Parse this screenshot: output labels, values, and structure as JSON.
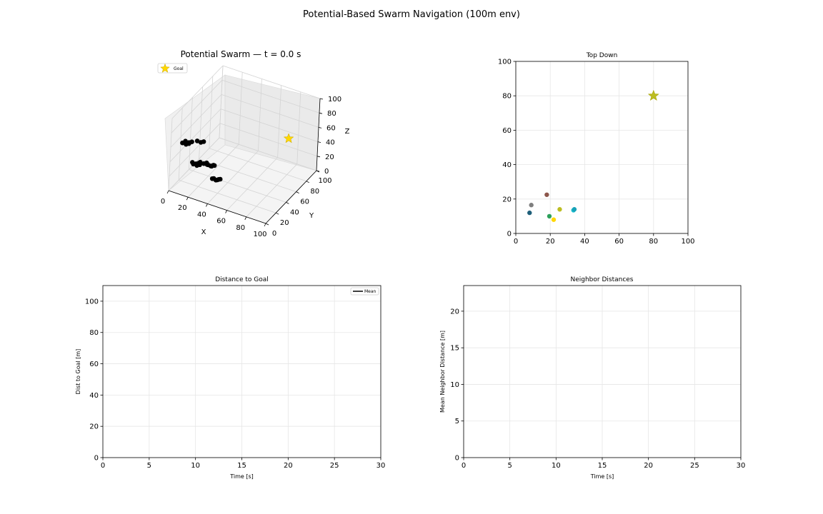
{
  "figure": {
    "suptitle": "Potential-Based Swarm Navigation (100m env)"
  },
  "chart_data": [
    {
      "type": "scatter3d",
      "title": "Potential Swarm — t = 0.0 s",
      "xlabel": "X",
      "ylabel": "Y",
      "zlabel": "Z",
      "xlim": [
        0,
        100
      ],
      "ylim": [
        0,
        100
      ],
      "zlim": [
        0,
        100
      ],
      "xticks": [
        0,
        20,
        40,
        60,
        80,
        100
      ],
      "yticks": [
        0,
        20,
        40,
        60,
        80,
        100
      ],
      "zticks": [
        0,
        20,
        40,
        60,
        80,
        100
      ],
      "legend": [
        {
          "label": "Goal",
          "marker": "star",
          "color": "#ffd700"
        }
      ],
      "goal": {
        "x": 80,
        "y": 80,
        "z": 50,
        "color": "#ffd700"
      },
      "drones": [
        {
          "x": 8,
          "y": 12,
          "z": 60,
          "color": "#000000"
        },
        {
          "x": 9,
          "y": 16,
          "z": 60,
          "color": "#000000"
        },
        {
          "x": 18,
          "y": 22,
          "z": 60,
          "color": "#000000"
        },
        {
          "x": 20,
          "y": 10,
          "z": 40,
          "color": "#000000"
        },
        {
          "x": 22,
          "y": 8,
          "z": 40,
          "color": "#000000"
        },
        {
          "x": 26,
          "y": 14,
          "z": 40,
          "color": "#000000"
        },
        {
          "x": 33,
          "y": 14,
          "z": 40,
          "color": "#000000"
        },
        {
          "x": 34,
          "y": 14,
          "z": 40,
          "color": "#000000"
        },
        {
          "x": 40,
          "y": 12,
          "z": 25,
          "color": "#000000"
        },
        {
          "x": 41,
          "y": 13,
          "z": 25,
          "color": "#000000"
        }
      ]
    },
    {
      "type": "scatter",
      "title": "Top Down",
      "xlim": [
        0,
        100
      ],
      "ylim": [
        0,
        100
      ],
      "xticks": [
        0,
        20,
        40,
        60,
        80,
        100
      ],
      "yticks": [
        0,
        20,
        40,
        60,
        80,
        100
      ],
      "grid": true,
      "goal": {
        "x": 80,
        "y": 80,
        "color": "#bcbd22"
      },
      "points": [
        {
          "x": 8,
          "y": 12,
          "color": "#1f5f7a"
        },
        {
          "x": 9,
          "y": 16.5,
          "color": "#7f7f7f"
        },
        {
          "x": 18,
          "y": 22.5,
          "color": "#8c564b"
        },
        {
          "x": 19.5,
          "y": 10,
          "color": "#2ca05a"
        },
        {
          "x": 22,
          "y": 8,
          "color": "#ffd700"
        },
        {
          "x": 25.5,
          "y": 14,
          "color": "#bcbd22"
        },
        {
          "x": 33.5,
          "y": 13.5,
          "color": "#17becf"
        },
        {
          "x": 34,
          "y": 14,
          "color": "#17a2b8"
        }
      ]
    },
    {
      "type": "line",
      "title": "Distance to Goal",
      "xlabel": "Time [s]",
      "ylabel": "Dist to Goal [m]",
      "xlim": [
        0,
        30
      ],
      "ylim": [
        0,
        110
      ],
      "xticks": [
        0,
        5,
        10,
        15,
        20,
        25,
        30
      ],
      "yticks": [
        0,
        20,
        40,
        60,
        80,
        100
      ],
      "grid": true,
      "legend": [
        {
          "label": "Mean",
          "color": "#000000"
        }
      ],
      "series": [
        {
          "name": "Mean",
          "x": [],
          "values": []
        }
      ]
    },
    {
      "type": "line",
      "title": "Neighbor Distances",
      "xlabel": "Time [s]",
      "ylabel": "Mean Neighbor Distance [m]",
      "xlim": [
        0,
        30
      ],
      "ylim": [
        0,
        23.5
      ],
      "xticks": [
        0,
        5,
        10,
        15,
        20,
        25,
        30
      ],
      "yticks": [
        0,
        5,
        10,
        15,
        20
      ],
      "grid": true,
      "series": []
    }
  ]
}
